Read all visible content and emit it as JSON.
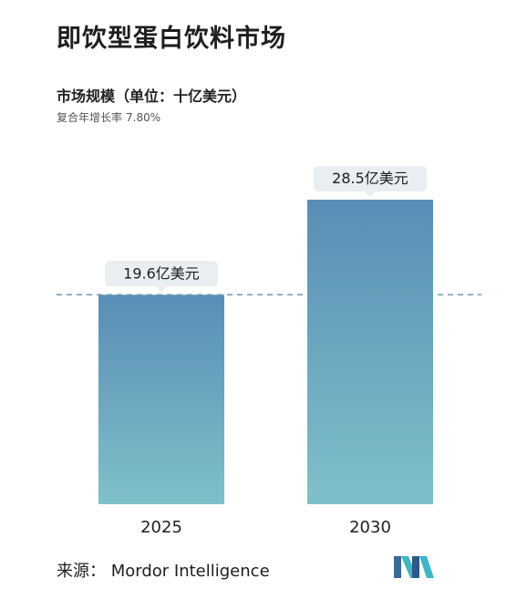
{
  "header": {
    "title": "即饮型蛋白饮料市场",
    "subtitle": "市场规模（单位：十亿美元）",
    "cagr_label": "复合年增长率",
    "cagr_value": "7.80%"
  },
  "chart_data": {
    "type": "bar",
    "categories": [
      "2025",
      "2030"
    ],
    "values": [
      1.96,
      2.85
    ],
    "data_labels": [
      "19.6亿美元",
      "28.5亿美元"
    ],
    "ylabel": "市场规模（单位：十亿美元）",
    "ylim": [
      0,
      2.85
    ],
    "grid": false,
    "reference_line": 1.96,
    "colors": {
      "bar_top": "#5a8db6",
      "bar_bottom": "#7fc1c9",
      "dashed_line": "#6f9aae",
      "label_bg": "#e8eef1"
    }
  },
  "footer": {
    "source": "来源：  Mordor Intelligence"
  },
  "logo": {
    "icon": "mordor-intelligence-logo-icon"
  }
}
